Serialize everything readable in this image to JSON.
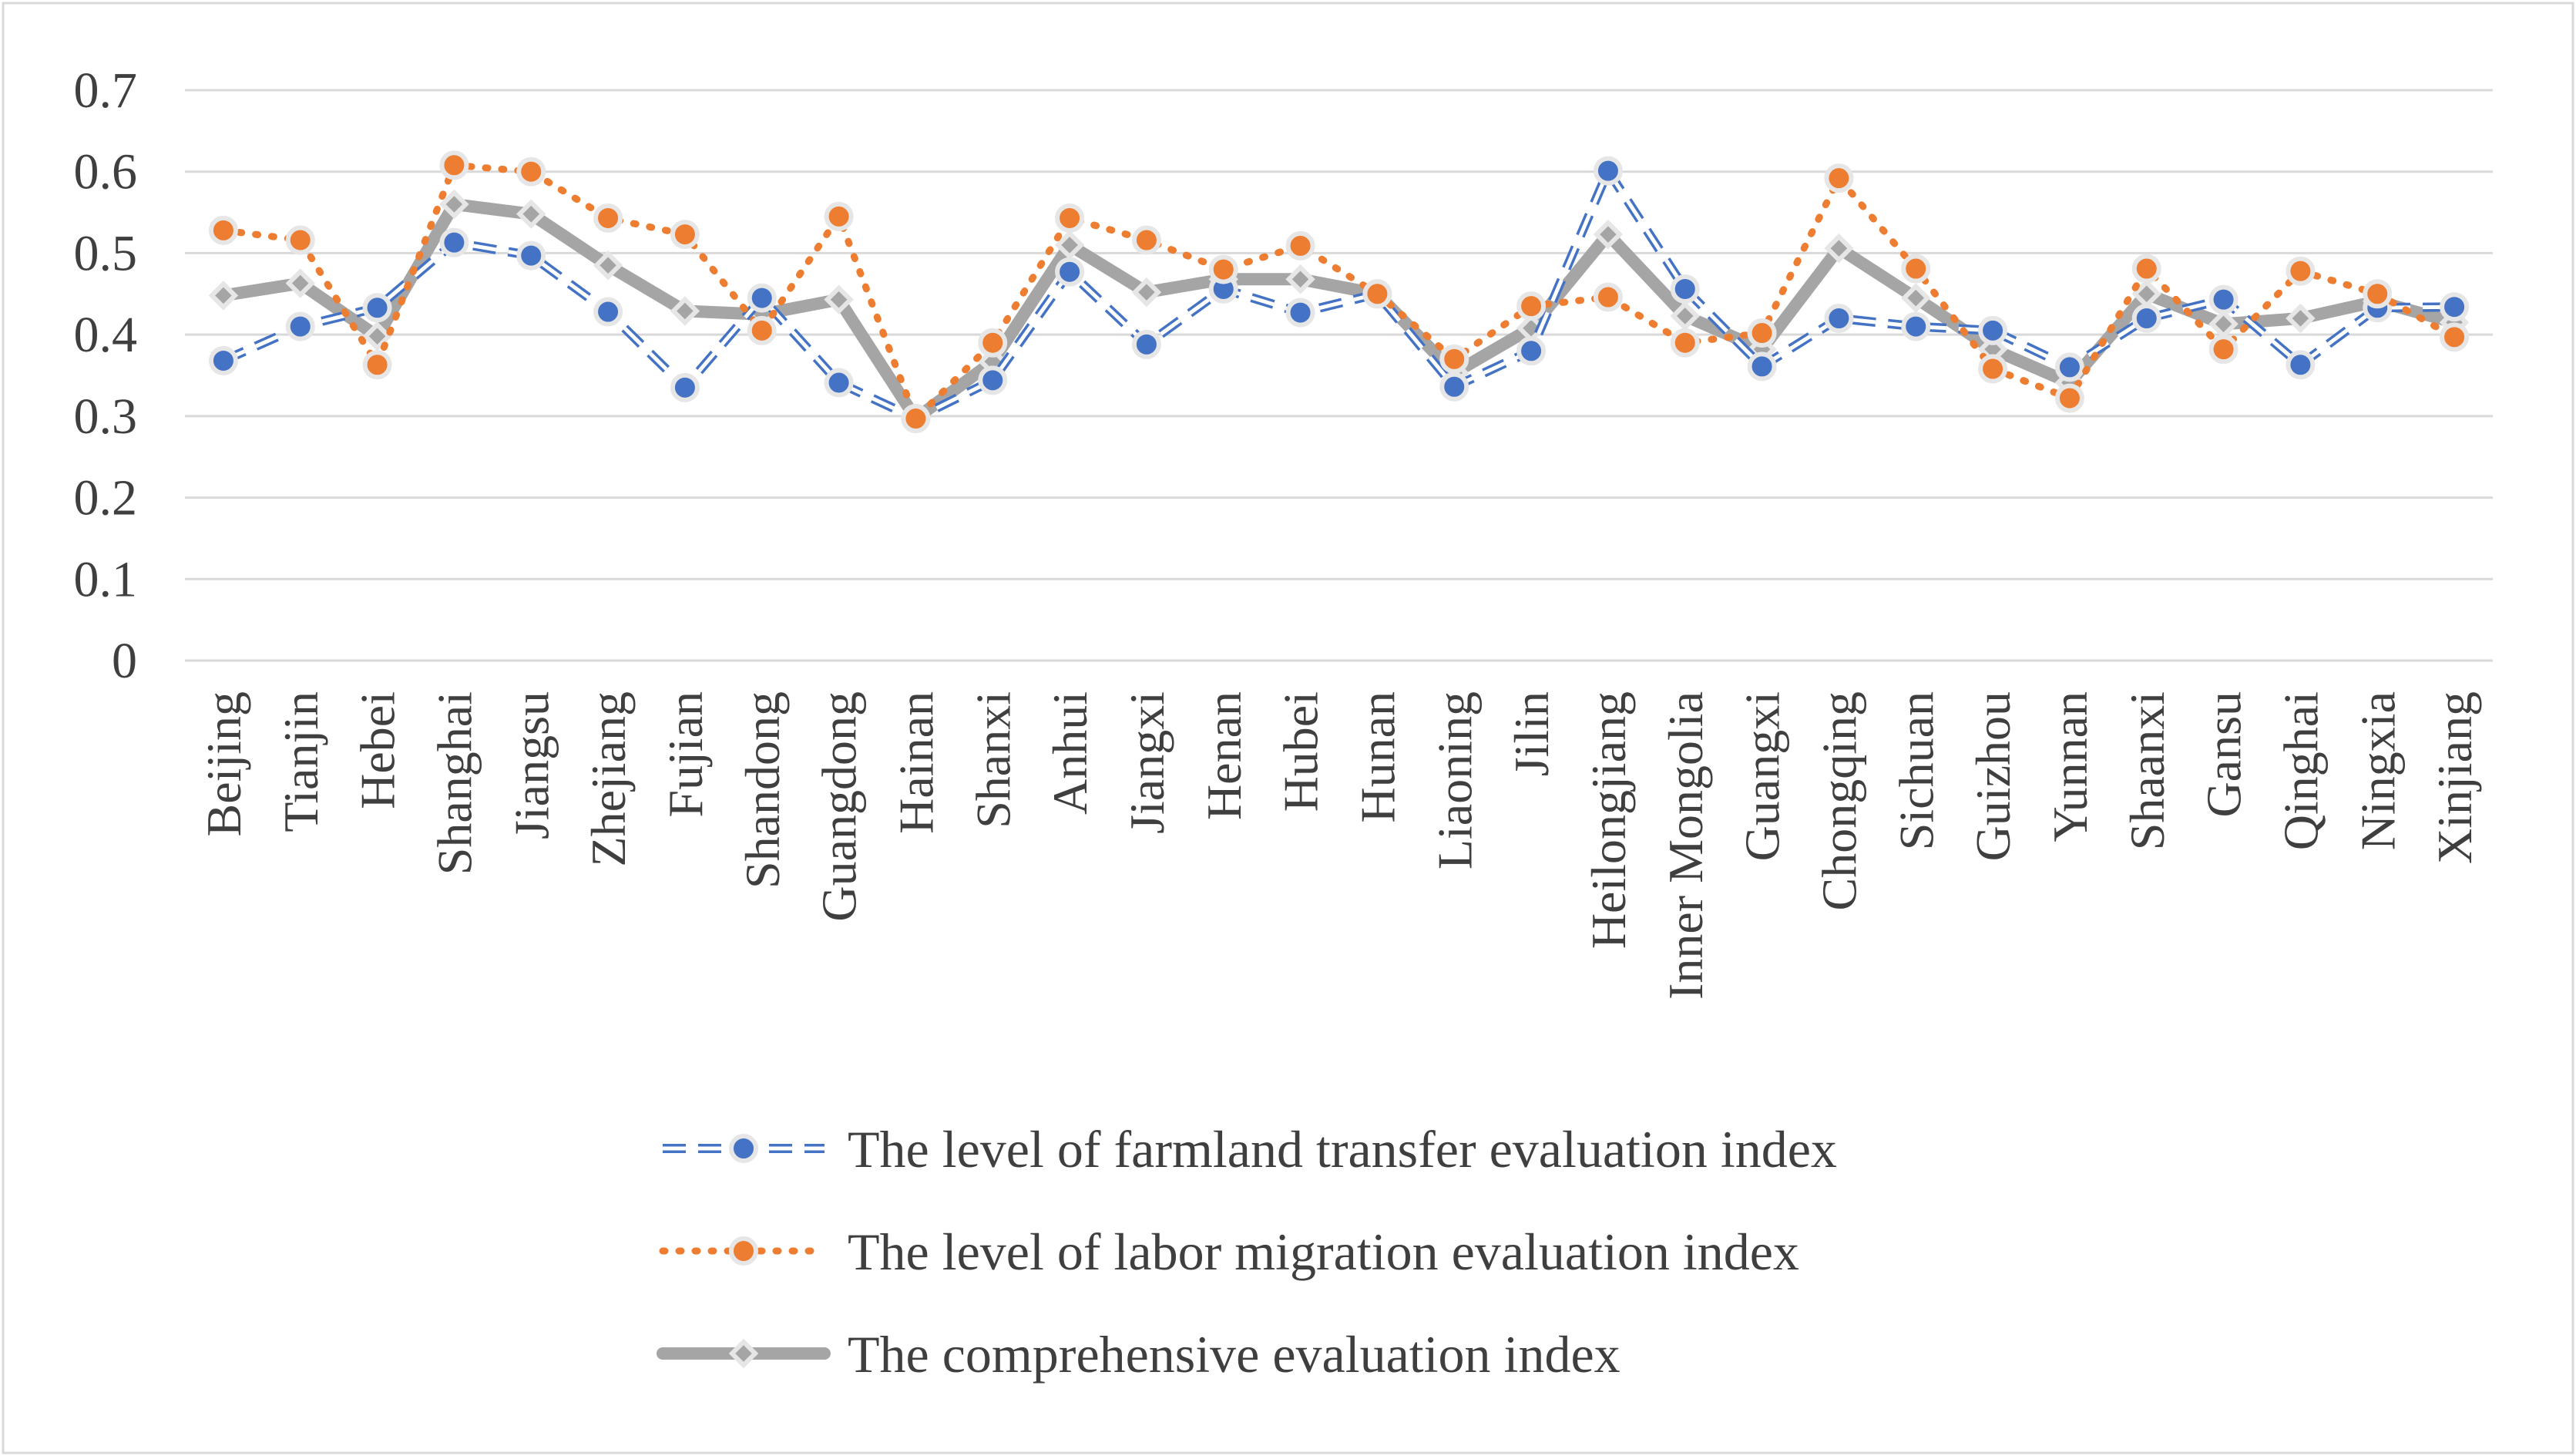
{
  "chart_data": {
    "type": "line",
    "title": "",
    "xlabel": "",
    "ylabel": "",
    "ylim": [
      0,
      0.7
    ],
    "yticks": [
      "0",
      "0.1",
      "0.2",
      "0.3",
      "0.4",
      "0.5",
      "0.6",
      "0.7"
    ],
    "grid": "horizontal",
    "legend_position": "bottom",
    "categories": [
      "Beijing",
      "Tianjin",
      "Hebei",
      "Shanghai",
      "Jiangsu",
      "Zhejiang",
      "Fujian",
      "Shandong",
      "Guangdong",
      "Hainan",
      "Shanxi",
      "Anhui",
      "Jiangxi",
      "Henan",
      "Hubei",
      "Hunan",
      "Liaoning",
      "Jilin",
      "Heilongjiang",
      "Inner Mongolia",
      "Guangxi",
      "Chongqing",
      "Sichuan",
      "Guizhou",
      "Yunnan",
      "Shaanxi",
      "Gansu",
      "Qinghai",
      "Ningxia",
      "Xinjiang"
    ],
    "series": [
      {
        "name": "The level of farmland transfer evaluation index",
        "color": "#4472C4",
        "line_style": "dashed",
        "marker": "circle",
        "values": [
          0.368,
          0.41,
          0.433,
          0.513,
          0.497,
          0.428,
          0.335,
          0.445,
          0.341,
          0.297,
          0.344,
          0.477,
          0.388,
          0.456,
          0.427,
          0.45,
          0.336,
          0.38,
          0.601,
          0.456,
          0.361,
          0.42,
          0.41,
          0.405,
          0.36,
          0.42,
          0.443,
          0.363,
          0.433,
          0.434
        ]
      },
      {
        "name": "The level of labor migration evaluation index",
        "color": "#ED7D31",
        "line_style": "dotted",
        "marker": "circle",
        "values": [
          0.528,
          0.516,
          0.363,
          0.608,
          0.6,
          0.543,
          0.523,
          0.405,
          0.545,
          0.297,
          0.39,
          0.543,
          0.516,
          0.48,
          0.509,
          0.45,
          0.37,
          0.435,
          0.446,
          0.39,
          0.402,
          0.592,
          0.481,
          0.358,
          0.322,
          0.481,
          0.382,
          0.478,
          0.45,
          0.397
        ]
      },
      {
        "name": "The comprehensive evaluation index",
        "color": "#A5A5A5",
        "line_style": "solid",
        "marker": "diamond",
        "values": [
          0.448,
          0.463,
          0.398,
          0.56,
          0.548,
          0.485,
          0.429,
          0.425,
          0.443,
          0.297,
          0.367,
          0.51,
          0.452,
          0.468,
          0.468,
          0.45,
          0.353,
          0.408,
          0.523,
          0.423,
          0.382,
          0.506,
          0.445,
          0.382,
          0.341,
          0.45,
          0.413,
          0.42,
          0.441,
          0.415
        ]
      }
    ]
  }
}
